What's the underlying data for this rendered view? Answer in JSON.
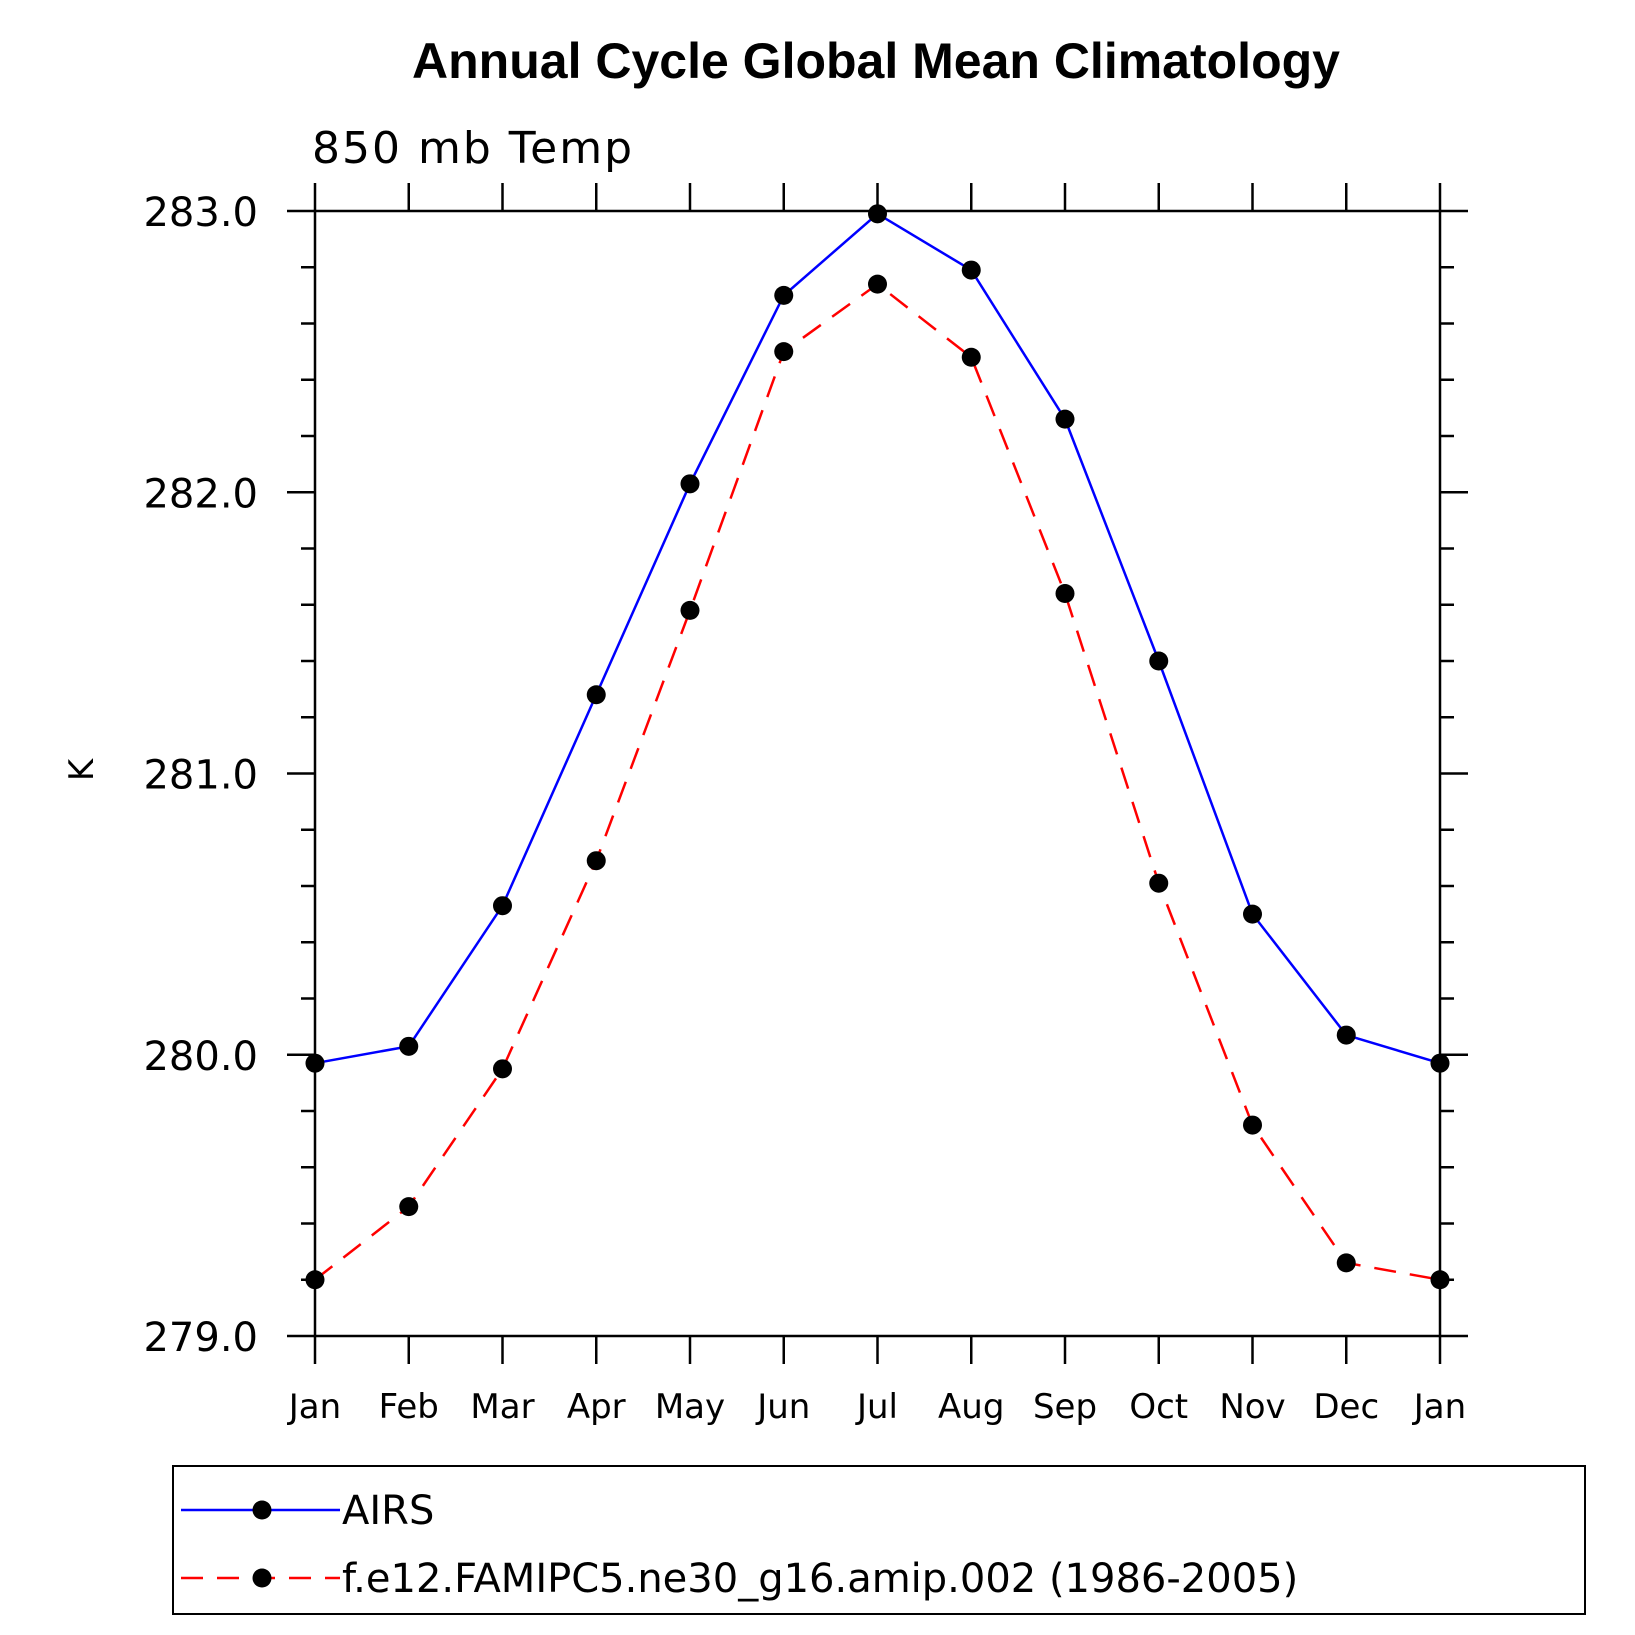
{
  "chart_data": {
    "type": "line",
    "title": "Annual Cycle Global Mean Climatology",
    "subtitle": "850 mb Temp",
    "ylabel": "K",
    "xlabel": "",
    "ylim": [
      279.0,
      283.0
    ],
    "yticks": [
      "279.0",
      "280.0",
      "281.0",
      "282.0",
      "283.0"
    ],
    "categories": [
      "Jan",
      "Feb",
      "Mar",
      "Apr",
      "May",
      "Jun",
      "Jul",
      "Aug",
      "Sep",
      "Oct",
      "Nov",
      "Dec",
      "Jan"
    ],
    "series": [
      {
        "name": "AIRS",
        "color": "#0000ff",
        "style": "solid",
        "marker": "filled-circle",
        "values": [
          279.97,
          280.03,
          280.53,
          281.28,
          282.03,
          282.7,
          282.99,
          282.79,
          282.26,
          281.4,
          280.5,
          280.07,
          279.97
        ]
      },
      {
        "name": "f.e12.FAMIPC5.ne30_g16.amip.002 (1986-2005)",
        "color": "#ff0000",
        "style": "dashed",
        "marker": "filled-circle",
        "values": [
          279.2,
          279.46,
          279.95,
          280.69,
          281.58,
          282.5,
          282.74,
          282.48,
          281.64,
          280.61,
          279.75,
          279.26,
          279.2
        ]
      }
    ],
    "grid": false,
    "legend": "bottom"
  }
}
